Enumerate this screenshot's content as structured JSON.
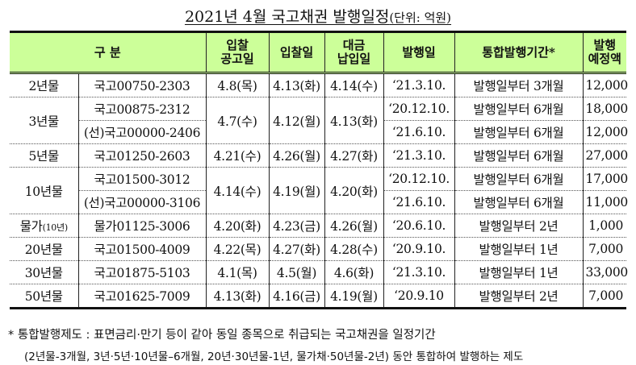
{
  "title": {
    "main": "2021년 4월 국고채권 발행일정",
    "unit": "(단위: 억원)"
  },
  "headers": {
    "category": "구 분",
    "announce": "입찰\n공고일",
    "bid": "입찰일",
    "payment": "대금\n납입일",
    "issue": "발행일",
    "period": "통합발행기간*",
    "amount": "발행\n예정액"
  },
  "rows": [
    {
      "term": "2년물",
      "issues": [
        {
          "code": "국고00750-2303",
          "issue": "‘21.3.10.",
          "period": "발행일부터 3개월",
          "amount": "12,000"
        }
      ],
      "announce": "4.8(목)",
      "bid": "4.13(화)",
      "payment": "4.14(수)"
    },
    {
      "term": "3년물",
      "issues": [
        {
          "code": "국고00875-2312",
          "issue": "‘20.12.10.",
          "period": "발행일부터 6개월",
          "amount": "18,000"
        },
        {
          "code": "(선)국고00000-2406",
          "issue": "‘21.6.10.",
          "period": "발행일부터 6개월",
          "amount": "12,000"
        }
      ],
      "announce": "4.7(수)",
      "bid": "4.12(월)",
      "payment": "4.13(화)"
    },
    {
      "term": "5년물",
      "issues": [
        {
          "code": "국고01250-2603",
          "issue": "‘21.3.10.",
          "period": "발행일부터 6개월",
          "amount": "27,000"
        }
      ],
      "announce": "4.21(수)",
      "bid": "4.26(월)",
      "payment": "4.27(화)"
    },
    {
      "term": "10년물",
      "issues": [
        {
          "code": "국고01500-3012",
          "issue": "‘20.12.10.",
          "period": "발행일부터 6개월",
          "amount": "17,000"
        },
        {
          "code": "(선)국고00000-3106",
          "issue": "‘21.6.10.",
          "period": "발행일부터 6개월",
          "amount": "11,000"
        }
      ],
      "announce": "4.14(수)",
      "bid": "4.19(월)",
      "payment": "4.20(화)"
    },
    {
      "term": "물가",
      "term_small": "(10년)",
      "issues": [
        {
          "code": "물가01125-3006",
          "issue": "‘20.6.10.",
          "period": "발행일부터 2년",
          "amount": "1,000"
        }
      ],
      "announce": "4.20(화)",
      "bid": "4.23(금)",
      "payment": "4.26(월)"
    },
    {
      "term": "20년물",
      "issues": [
        {
          "code": "국고01500-4009",
          "issue": "‘20.9.10.",
          "period": "발행일부터 1년",
          "amount": "7,000"
        }
      ],
      "announce": "4.22(목)",
      "bid": "4.27(화)",
      "payment": "4.28(수)"
    },
    {
      "term": "30년물",
      "issues": [
        {
          "code": "국고01875-5103",
          "issue": "‘21.3.10.",
          "period": "발행일부터 1년",
          "amount": "33,000"
        }
      ],
      "announce": "4.1(목)",
      "bid": "4.5(월)",
      "payment": "4.6(화)"
    },
    {
      "term": "50년물",
      "issues": [
        {
          "code": "국고01625-7009",
          "issue": "‘20.9.10",
          "period": "발행일부터 2년",
          "amount": "7,000"
        }
      ],
      "announce": "4.13(화)",
      "bid": "4.16(금)",
      "payment": "4.19(월)"
    }
  ],
  "notes": {
    "line1": "*  통합발행제도 : 표면금리·만기 등이 같아 동일 종목으로 취급되는 국고채권을 일정기간",
    "line2": "(2년물-3개월, 3년·5년·10년물–6개월, 20년·30년물-1년, 물가채·50년물-2년) 동안 통합하여 발행하는 제도"
  },
  "colors": {
    "header_bg": "#ccff99"
  }
}
